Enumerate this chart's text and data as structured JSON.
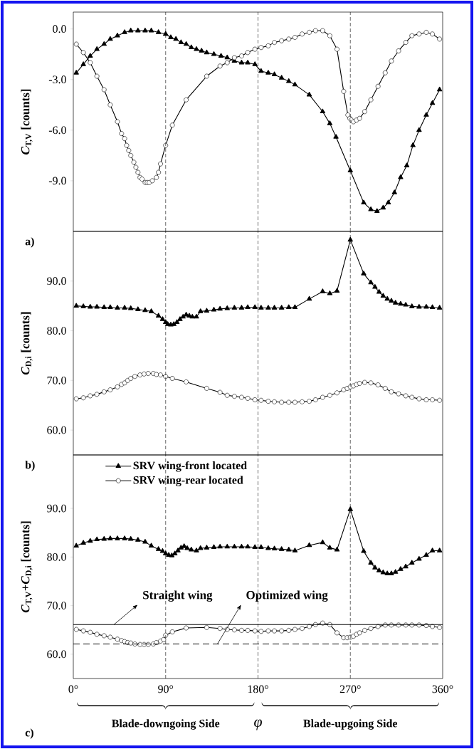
{
  "chart_data": [
    {
      "type": "line",
      "xlim": [
        0,
        360
      ],
      "ylim": [
        -12,
        1
      ],
      "yticks": [
        {
          "value": -9,
          "label": "-9.0"
        },
        {
          "value": -6,
          "label": "-6.0"
        },
        {
          "value": -3,
          "label": "-3.0"
        },
        {
          "value": 0,
          "label": "0.0"
        }
      ],
      "ylabel": "*C*$_{T,V}$ [counts]",
      "tick_labels": "y",
      "annotations": [
        "a)"
      ],
      "ref_lines": [
        {
          "axis": "x",
          "value": 90,
          "line_style": "dashed"
        },
        {
          "axis": "x",
          "value": 180,
          "line_style": "dashed"
        },
        {
          "axis": "x",
          "value": 270,
          "line_style": "dashed"
        }
      ],
      "series": [
        {
          "color": "#000000",
          "marker": "triangle",
          "x": [
            2.9,
            9.8,
            16.5,
            23,
            30,
            36,
            43,
            50,
            56,
            63,
            70,
            76,
            83,
            90,
            95,
            100,
            105,
            110,
            115,
            120,
            125,
            130,
            137,
            144,
            150,
            157,
            164,
            170,
            177,
            183,
            190,
            196,
            203,
            210,
            216,
            230,
            243,
            250,
            256,
            270,
            283,
            290,
            296,
            302,
            307,
            313,
            319,
            325,
            331,
            337,
            344,
            350,
            357
          ],
          "values": [
            -2.6,
            -2.1,
            -1.6,
            -1.2,
            -0.9,
            -0.6,
            -0.4,
            -0.2,
            -0.1,
            -0.1,
            -0.1,
            -0.1,
            -0.2,
            -0.3,
            -0.5,
            -0.6,
            -0.8,
            -0.9,
            -1.1,
            -1.2,
            -1.3,
            -1.4,
            -1.5,
            -1.6,
            -1.7,
            -1.9,
            -2.0,
            -2.0,
            -2.1,
            -2.5,
            -2.6,
            -2.7,
            -2.9,
            -3.1,
            -3.3,
            -3.9,
            -4.9,
            -5.6,
            -6.4,
            -8.4,
            -10.3,
            -10.7,
            -10.8,
            -10.6,
            -10.3,
            -9.7,
            -8.8,
            -8.1,
            -6.9,
            -6.0,
            -5.1,
            -4.4,
            -3.6
          ]
        },
        {
          "color": "#000000",
          "marker": "circle",
          "x": [
            2.9,
            9.8,
            16.5,
            23,
            30,
            36,
            43,
            47,
            50,
            52,
            54,
            56,
            59,
            61,
            63,
            65,
            67,
            70,
            72,
            74,
            77,
            81,
            83,
            85,
            90,
            96.5,
            110,
            130,
            143,
            150,
            157,
            164,
            170,
            177,
            183,
            190,
            196,
            203,
            210,
            216,
            223,
            230,
            236,
            243,
            250,
            257,
            263.5,
            267.6,
            269.5,
            271,
            273,
            276,
            279,
            284,
            290,
            297,
            304,
            310,
            317,
            324,
            330,
            337,
            344,
            350,
            357
          ],
          "values": [
            -0.9,
            -1.4,
            -2.0,
            -2.8,
            -3.6,
            -4.5,
            -5.5,
            -6.2,
            -6.5,
            -6.9,
            -7.2,
            -7.5,
            -7.9,
            -8.2,
            -8.5,
            -8.8,
            -8.9,
            -9.1,
            -9.1,
            -9.1,
            -9.0,
            -8.8,
            -8.5,
            -8.0,
            -6.9,
            -5.7,
            -4.2,
            -2.8,
            -2.2,
            -2.0,
            -1.7,
            -1.6,
            -1.4,
            -1.2,
            -1.1,
            -1.0,
            -0.8,
            -0.7,
            -0.6,
            -0.5,
            -0.3,
            -0.2,
            -0.1,
            -0.1,
            -0.4,
            -1.2,
            -3.7,
            -5.1,
            -5.3,
            -5.4,
            -5.5,
            -5.4,
            -5.3,
            -4.9,
            -4.2,
            -3.4,
            -2.6,
            -1.9,
            -1.3,
            -0.8,
            -0.4,
            -0.3,
            -0.2,
            -0.3,
            -0.6
          ]
        }
      ]
    },
    {
      "type": "line",
      "xlim": [
        0,
        360
      ],
      "ylim": [
        55,
        100
      ],
      "yticks": [
        {
          "value": 60,
          "label": "60.0"
        },
        {
          "value": 70,
          "label": "70.0"
        },
        {
          "value": 80,
          "label": "80.0"
        },
        {
          "value": 90,
          "label": "90.0"
        }
      ],
      "ylabel": "*C*$_{D,i}$ [counts]",
      "tick_labels": "y",
      "annotations": [
        "b)"
      ],
      "ref_lines": [
        {
          "axis": "x",
          "value": 90,
          "line_style": "dashed"
        },
        {
          "axis": "x",
          "value": 180,
          "line_style": "dashed"
        },
        {
          "axis": "x",
          "value": 270,
          "line_style": "dashed"
        }
      ],
      "series": [
        {
          "color": "#000000",
          "marker": "triangle",
          "x": [
            2.9,
            9.8,
            16.5,
            23,
            30,
            36,
            43,
            50,
            56,
            63,
            70,
            76,
            83,
            87,
            90,
            92,
            95,
            98,
            101,
            104,
            107,
            110,
            113,
            116,
            120,
            124,
            130,
            137,
            143,
            150,
            157,
            164,
            170,
            177,
            183,
            190,
            196,
            203,
            210,
            216,
            230,
            243,
            250,
            257,
            270,
            283,
            290,
            294,
            298,
            302,
            306,
            310,
            314,
            319,
            324,
            330,
            337,
            344,
            350,
            357
          ],
          "values": [
            85.0,
            84.9,
            84.8,
            84.8,
            84.7,
            84.7,
            84.6,
            84.6,
            84.5,
            84.3,
            84.1,
            83.9,
            83.0,
            82.3,
            81.7,
            81.3,
            81.2,
            81.3,
            81.7,
            82.3,
            82.8,
            83.2,
            83.0,
            82.8,
            82.8,
            83.9,
            84.0,
            84.2,
            84.4,
            84.5,
            84.6,
            84.6,
            84.7,
            84.7,
            84.6,
            84.6,
            84.6,
            84.6,
            84.7,
            84.7,
            86.4,
            87.9,
            87.5,
            88.0,
            98.3,
            91.5,
            89.7,
            88.8,
            87.8,
            87.0,
            86.4,
            86.0,
            85.6,
            85.4,
            85.2,
            84.9,
            84.8,
            84.8,
            84.7,
            84.6
          ]
        },
        {
          "color": "#000000",
          "marker": "circle",
          "x": [
            2.9,
            9.8,
            16.5,
            23,
            30,
            36,
            43,
            47,
            50,
            53,
            56,
            60,
            65,
            69,
            73,
            78,
            81,
            85,
            90,
            96.5,
            110,
            130,
            143,
            150,
            157,
            164,
            170,
            177,
            183,
            190,
            196,
            203,
            210,
            216,
            223,
            230,
            236,
            243,
            250,
            257,
            263.5,
            267,
            270,
            273,
            276,
            279,
            284,
            290,
            297,
            304,
            310,
            317,
            324,
            330,
            337,
            344,
            350,
            357
          ],
          "values": [
            66.3,
            66.5,
            66.9,
            67.2,
            67.7,
            68.1,
            68.7,
            69.2,
            69.5,
            70.0,
            70.4,
            70.8,
            71.1,
            71.3,
            71.4,
            71.4,
            71.2,
            71.1,
            70.8,
            70.4,
            69.7,
            68.4,
            67.6,
            67.0,
            66.8,
            66.6,
            66.4,
            66.1,
            66.0,
            65.8,
            65.7,
            65.6,
            65.6,
            65.6,
            65.7,
            65.8,
            66.1,
            66.6,
            67.0,
            67.5,
            68.1,
            68.4,
            68.7,
            68.9,
            69.2,
            69.4,
            69.6,
            69.5,
            69.1,
            68.4,
            67.7,
            67.3,
            66.9,
            66.6,
            66.3,
            66.1,
            66.1,
            66.0
          ]
        }
      ]
    },
    {
      "type": "line",
      "xlim": [
        0,
        360
      ],
      "xticks": [
        {
          "value": 0,
          "label": "0°"
        },
        {
          "value": 90,
          "label": "90°"
        },
        {
          "value": 180,
          "label": "180°"
        },
        {
          "value": 270,
          "label": "270°"
        },
        {
          "value": 360,
          "label": "360°"
        }
      ],
      "ylim": [
        55,
        101
      ],
      "yticks": [
        {
          "value": 60,
          "label": "60.0"
        },
        {
          "value": 70,
          "label": "70.0"
        },
        {
          "value": 80,
          "label": "80.0"
        },
        {
          "value": 90,
          "label": "90.0"
        }
      ],
      "ylabel": "*C*$_{T,V}$+*C*$_{D,i}$ [counts]",
      "xlabel": "*φ*",
      "legend": "top left",
      "annotations": [
        "c)",
        "Blade-downgoing Side",
        "Blade-upgoing Side"
      ],
      "ref_lines": [
        {
          "axis": "x",
          "value": 90,
          "line_style": "dashed"
        },
        {
          "axis": "x",
          "value": 180,
          "line_style": "dashed"
        },
        {
          "axis": "x",
          "value": 270,
          "line_style": "dashed"
        },
        {
          "axis": "y",
          "value": 66.1,
          "line_style": "solid",
          "label": "Straight wing"
        },
        {
          "axis": "y",
          "value": 62.1,
          "line_style": "dashed",
          "label": "Optimized wing"
        }
      ],
      "series": [
        {
          "name": "SRV wing-front located",
          "color": "#000000",
          "marker": "triangle",
          "x": [
            2.9,
            9.8,
            16.5,
            23,
            30,
            36,
            43,
            50,
            56,
            63,
            70,
            76,
            83,
            87,
            90,
            93,
            96,
            99,
            102,
            105,
            108,
            111,
            115,
            120,
            124,
            130,
            137,
            143,
            150,
            157,
            164,
            170,
            177,
            183,
            190,
            196,
            203,
            210,
            216,
            230,
            243,
            250,
            257,
            270,
            283,
            290,
            294,
            298,
            302,
            306,
            310,
            314,
            319,
            324,
            330,
            337,
            344,
            350,
            357
          ],
          "values": [
            82.3,
            82.9,
            83.3,
            83.6,
            83.7,
            83.8,
            83.8,
            83.8,
            83.7,
            83.5,
            83.1,
            82.3,
            81.6,
            81.2,
            80.7,
            80.4,
            80.3,
            80.7,
            81.3,
            81.9,
            82.2,
            81.8,
            81.5,
            81.3,
            81.8,
            81.9,
            82.0,
            82.1,
            82.1,
            82.1,
            82.1,
            82.1,
            82.0,
            82.0,
            81.8,
            81.7,
            81.6,
            81.5,
            81.3,
            82.4,
            83.0,
            81.9,
            81.5,
            89.8,
            81.2,
            78.8,
            77.8,
            77.2,
            76.8,
            76.6,
            76.6,
            76.9,
            77.5,
            78.0,
            78.8,
            79.6,
            80.4,
            81.3,
            81.3
          ]
        },
        {
          "name": "SRV wing-rear located",
          "color": "#000000",
          "marker": "circle",
          "x": [
            2.9,
            9.8,
            16.5,
            23,
            30,
            36,
            43,
            47,
            50,
            53,
            56,
            60,
            65,
            69,
            73,
            78,
            81,
            85,
            88,
            90,
            96.5,
            110,
            130,
            143,
            150,
            157,
            164,
            170,
            177,
            183,
            190,
            196,
            203,
            210,
            216,
            223,
            230,
            236,
            243,
            250,
            257,
            263.5,
            267,
            270,
            273,
            276,
            279,
            284,
            290,
            297,
            304,
            310,
            317,
            324,
            330,
            337,
            344,
            350,
            357
          ],
          "values": [
            65.1,
            64.8,
            64.5,
            64.1,
            63.8,
            63.5,
            63.1,
            62.8,
            62.6,
            62.4,
            62.3,
            62.1,
            62.0,
            62.0,
            62.0,
            62.1,
            62.4,
            62.7,
            63.0,
            63.9,
            64.6,
            65.4,
            65.5,
            65.3,
            65.1,
            65.0,
            64.9,
            64.9,
            64.8,
            64.7,
            64.8,
            64.8,
            64.8,
            64.9,
            65.1,
            65.3,
            65.7,
            66.1,
            66.4,
            66.1,
            64.4,
            63.4,
            63.4,
            63.5,
            63.7,
            64.1,
            64.4,
            64.9,
            65.3,
            65.7,
            66.0,
            66.0,
            66.0,
            66.0,
            66.0,
            66.0,
            65.9,
            65.7,
            65.5
          ]
        }
      ]
    }
  ]
}
